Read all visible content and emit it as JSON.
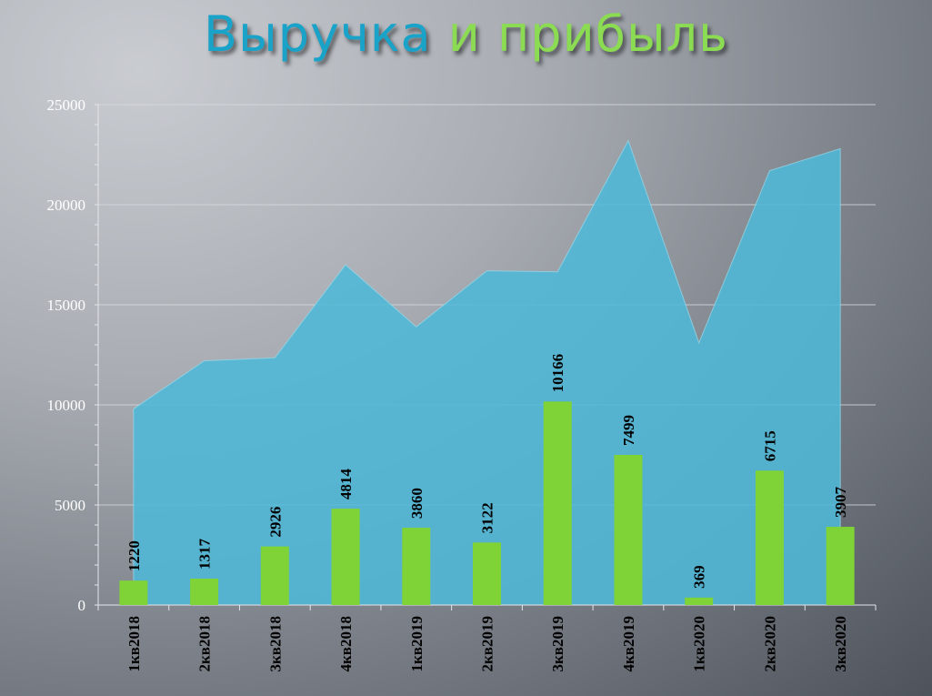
{
  "title_part1": "Выручка",
  "title_part2": "и прибыль",
  "colors": {
    "area": "#4fb9d8",
    "bar": "#7fd336",
    "title_part1": "#1aa3c9",
    "title_part2": "#8bdc52"
  },
  "chart_data": {
    "type": "bar",
    "categories": [
      "1кв2018",
      "2кв2018",
      "3кв2018",
      "4кв2018",
      "1кв2019",
      "2кв2019",
      "3кв2019",
      "4кв2019",
      "1кв2020",
      "2кв2020",
      "3кв2020"
    ],
    "series": [
      {
        "type": "area",
        "values": [
          9800,
          12200,
          12350,
          17000,
          13900,
          16700,
          16650,
          23200,
          13100,
          21700,
          22800
        ]
      },
      {
        "type": "bar",
        "values": [
          1220,
          1317,
          2926,
          4814,
          3860,
          3122,
          10166,
          7499,
          369,
          6715,
          3907
        ]
      }
    ],
    "ylim": [
      0,
      25000
    ],
    "yticks": [
      0,
      5000,
      10000,
      15000,
      20000,
      25000
    ],
    "grid": true,
    "data_labels": true
  }
}
